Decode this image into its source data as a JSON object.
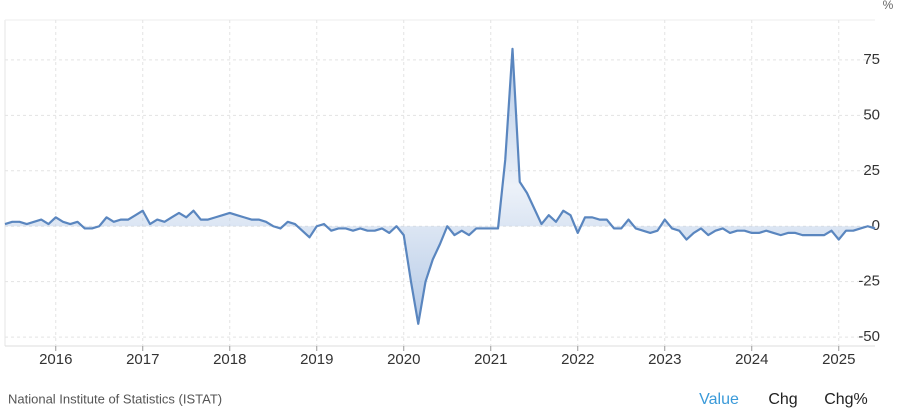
{
  "chart_data": {
    "type": "area",
    "unit": "%",
    "source": "National Institute of Statistics (ISTAT)",
    "buttons": [
      "Value",
      "Chg",
      "Chg%"
    ],
    "color": "#5a86bf",
    "fill": "#b4c9e6",
    "grid": true,
    "categories": [
      null,
      null,
      null,
      null,
      null,
      null,
      null,
      "2016",
      null,
      null,
      null,
      null,
      null,
      null,
      null,
      null,
      null,
      null,
      null,
      "2017",
      null,
      null,
      null,
      null,
      null,
      null,
      null,
      null,
      null,
      null,
      null,
      "2018",
      null,
      null,
      null,
      null,
      null,
      null,
      null,
      null,
      null,
      null,
      null,
      "2019",
      null,
      null,
      null,
      null,
      null,
      null,
      null,
      null,
      null,
      null,
      null,
      "2020",
      null,
      null,
      null,
      null,
      null,
      null,
      null,
      null,
      null,
      null,
      null,
      "2021",
      null,
      null,
      null,
      null,
      null,
      null,
      null,
      null,
      null,
      null,
      null,
      "2022",
      null,
      null,
      null,
      null,
      null,
      null,
      null,
      null,
      null,
      null,
      null,
      "2023",
      null,
      null,
      null,
      null,
      null,
      null,
      null,
      null,
      null,
      null,
      null,
      "2024",
      null,
      null,
      null,
      null,
      null,
      null,
      null,
      null,
      null,
      null,
      null,
      "2025",
      null,
      null,
      null,
      null,
      null
    ],
    "values": [
      1,
      2,
      2,
      1,
      2,
      3,
      1,
      4,
      2,
      1,
      2,
      -1,
      -1,
      0,
      4,
      2,
      3,
      3,
      5,
      7,
      1,
      3,
      2,
      4,
      6,
      4,
      7,
      3,
      3,
      4,
      5,
      6,
      5,
      4,
      3,
      3,
      2,
      0,
      -1,
      2,
      1,
      -2,
      -5,
      0,
      1,
      -2,
      -1,
      -1,
      -2,
      -1,
      -2,
      -2,
      -1,
      -3,
      0,
      -4,
      -25,
      -44,
      -25,
      -15,
      -8,
      0,
      -4,
      -2,
      -4,
      -1,
      -1,
      -1,
      -1,
      30,
      80,
      20,
      15,
      8,
      1,
      5,
      2,
      7,
      5,
      -3,
      4,
      4,
      3,
      3,
      -1,
      -1,
      3,
      -1,
      -2,
      -3,
      -2,
      3,
      -1,
      -2,
      -6,
      -3,
      -1,
      -4,
      -2,
      -1,
      -3,
      -2,
      -2,
      -3,
      -3,
      -2,
      -3,
      -4,
      -3,
      -3,
      -4,
      -4,
      -4,
      -4,
      -2,
      -6,
      -2,
      -2,
      -1,
      0,
      -1
    ],
    "ylim": [
      -54,
      93
    ],
    "yticks": [
      -50,
      -25,
      0,
      25,
      50,
      75
    ]
  }
}
